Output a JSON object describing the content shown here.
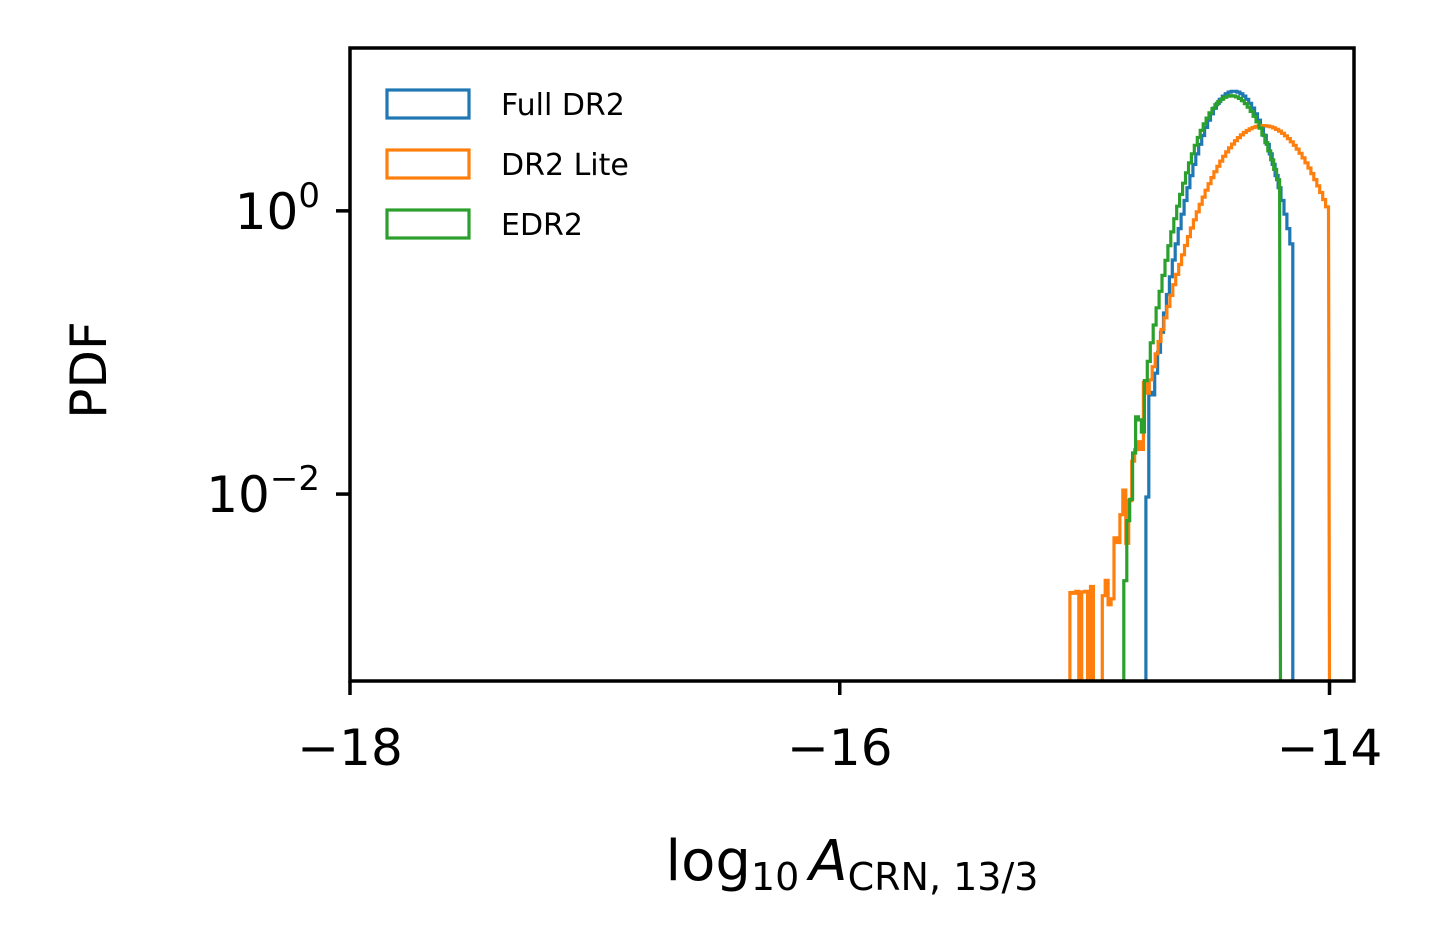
{
  "chart_data": {
    "type": "histogram-step",
    "xlabel": {
      "base": "log",
      "base_sub": "10",
      "var": "A",
      "var_sub": "CRN, 13/3"
    },
    "ylabel": "PDF",
    "xlim": [
      -18,
      -13.9
    ],
    "ylim_log10": [
      -3.32,
      1.15
    ],
    "y_scale": "log",
    "x_ticks": [
      {
        "value": -18,
        "label": "−18"
      },
      {
        "value": -16,
        "label": "−16"
      },
      {
        "value": -14,
        "label": "−14"
      }
    ],
    "y_ticks": [
      {
        "value": 1,
        "base": "10",
        "exp": "0"
      },
      {
        "value": 0.01,
        "base": "10",
        "exp": "−2"
      }
    ],
    "grid": false,
    "legend_position": "top-left",
    "series": [
      {
        "name": "Full DR2",
        "color": "#1f77b4",
        "mean": -14.39,
        "sigma": 0.105,
        "peak": 7.0,
        "support": [
          -14.75,
          -14.15
        ]
      },
      {
        "name": "DR2 Lite",
        "color": "#ff7f0e",
        "mean": -14.27,
        "sigma": 0.16,
        "peak": 4.0,
        "support": [
          -15.06,
          -14.0
        ]
      },
      {
        "name": "EDR2",
        "color": "#2ca02c",
        "mean": -14.4,
        "sigma": 0.115,
        "peak": 6.5,
        "support": [
          -14.84,
          -14.2
        ]
      }
    ]
  }
}
